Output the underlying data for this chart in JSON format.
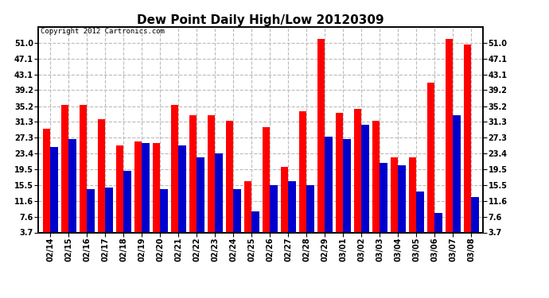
{
  "title": "Dew Point Daily High/Low 20120309",
  "copyright": "Copyright 2012 Cartronics.com",
  "dates": [
    "02/14",
    "02/15",
    "02/16",
    "02/17",
    "02/18",
    "02/19",
    "02/20",
    "02/21",
    "02/22",
    "02/23",
    "02/24",
    "02/25",
    "02/26",
    "02/27",
    "02/28",
    "02/29",
    "03/01",
    "03/02",
    "03/03",
    "03/04",
    "03/05",
    "03/06",
    "03/07",
    "03/08"
  ],
  "high_values": [
    29.5,
    35.5,
    35.5,
    32.0,
    25.5,
    26.5,
    26.0,
    35.5,
    33.0,
    33.0,
    31.5,
    16.5,
    30.0,
    20.0,
    34.0,
    52.0,
    33.5,
    34.5,
    31.5,
    22.5,
    22.5,
    41.0,
    52.0,
    50.5
  ],
  "low_values": [
    25.0,
    27.0,
    14.5,
    15.0,
    19.0,
    26.0,
    14.5,
    25.5,
    22.5,
    23.5,
    14.5,
    9.0,
    15.5,
    16.5,
    15.5,
    27.5,
    27.0,
    30.5,
    21.0,
    20.5,
    14.0,
    8.5,
    33.0,
    12.5
  ],
  "high_color": "#ff0000",
  "low_color": "#0000cc",
  "bg_color": "#ffffff",
  "grid_color": "#bbbbbb",
  "yticks": [
    3.7,
    7.6,
    11.6,
    15.5,
    19.5,
    23.4,
    27.3,
    31.3,
    35.2,
    39.2,
    43.1,
    47.1,
    51.0
  ],
  "ymin": 3.7,
  "ymax": 55.0,
  "bar_width": 0.42,
  "title_fontsize": 11,
  "tick_fontsize": 7,
  "copyright_fontsize": 6.5
}
